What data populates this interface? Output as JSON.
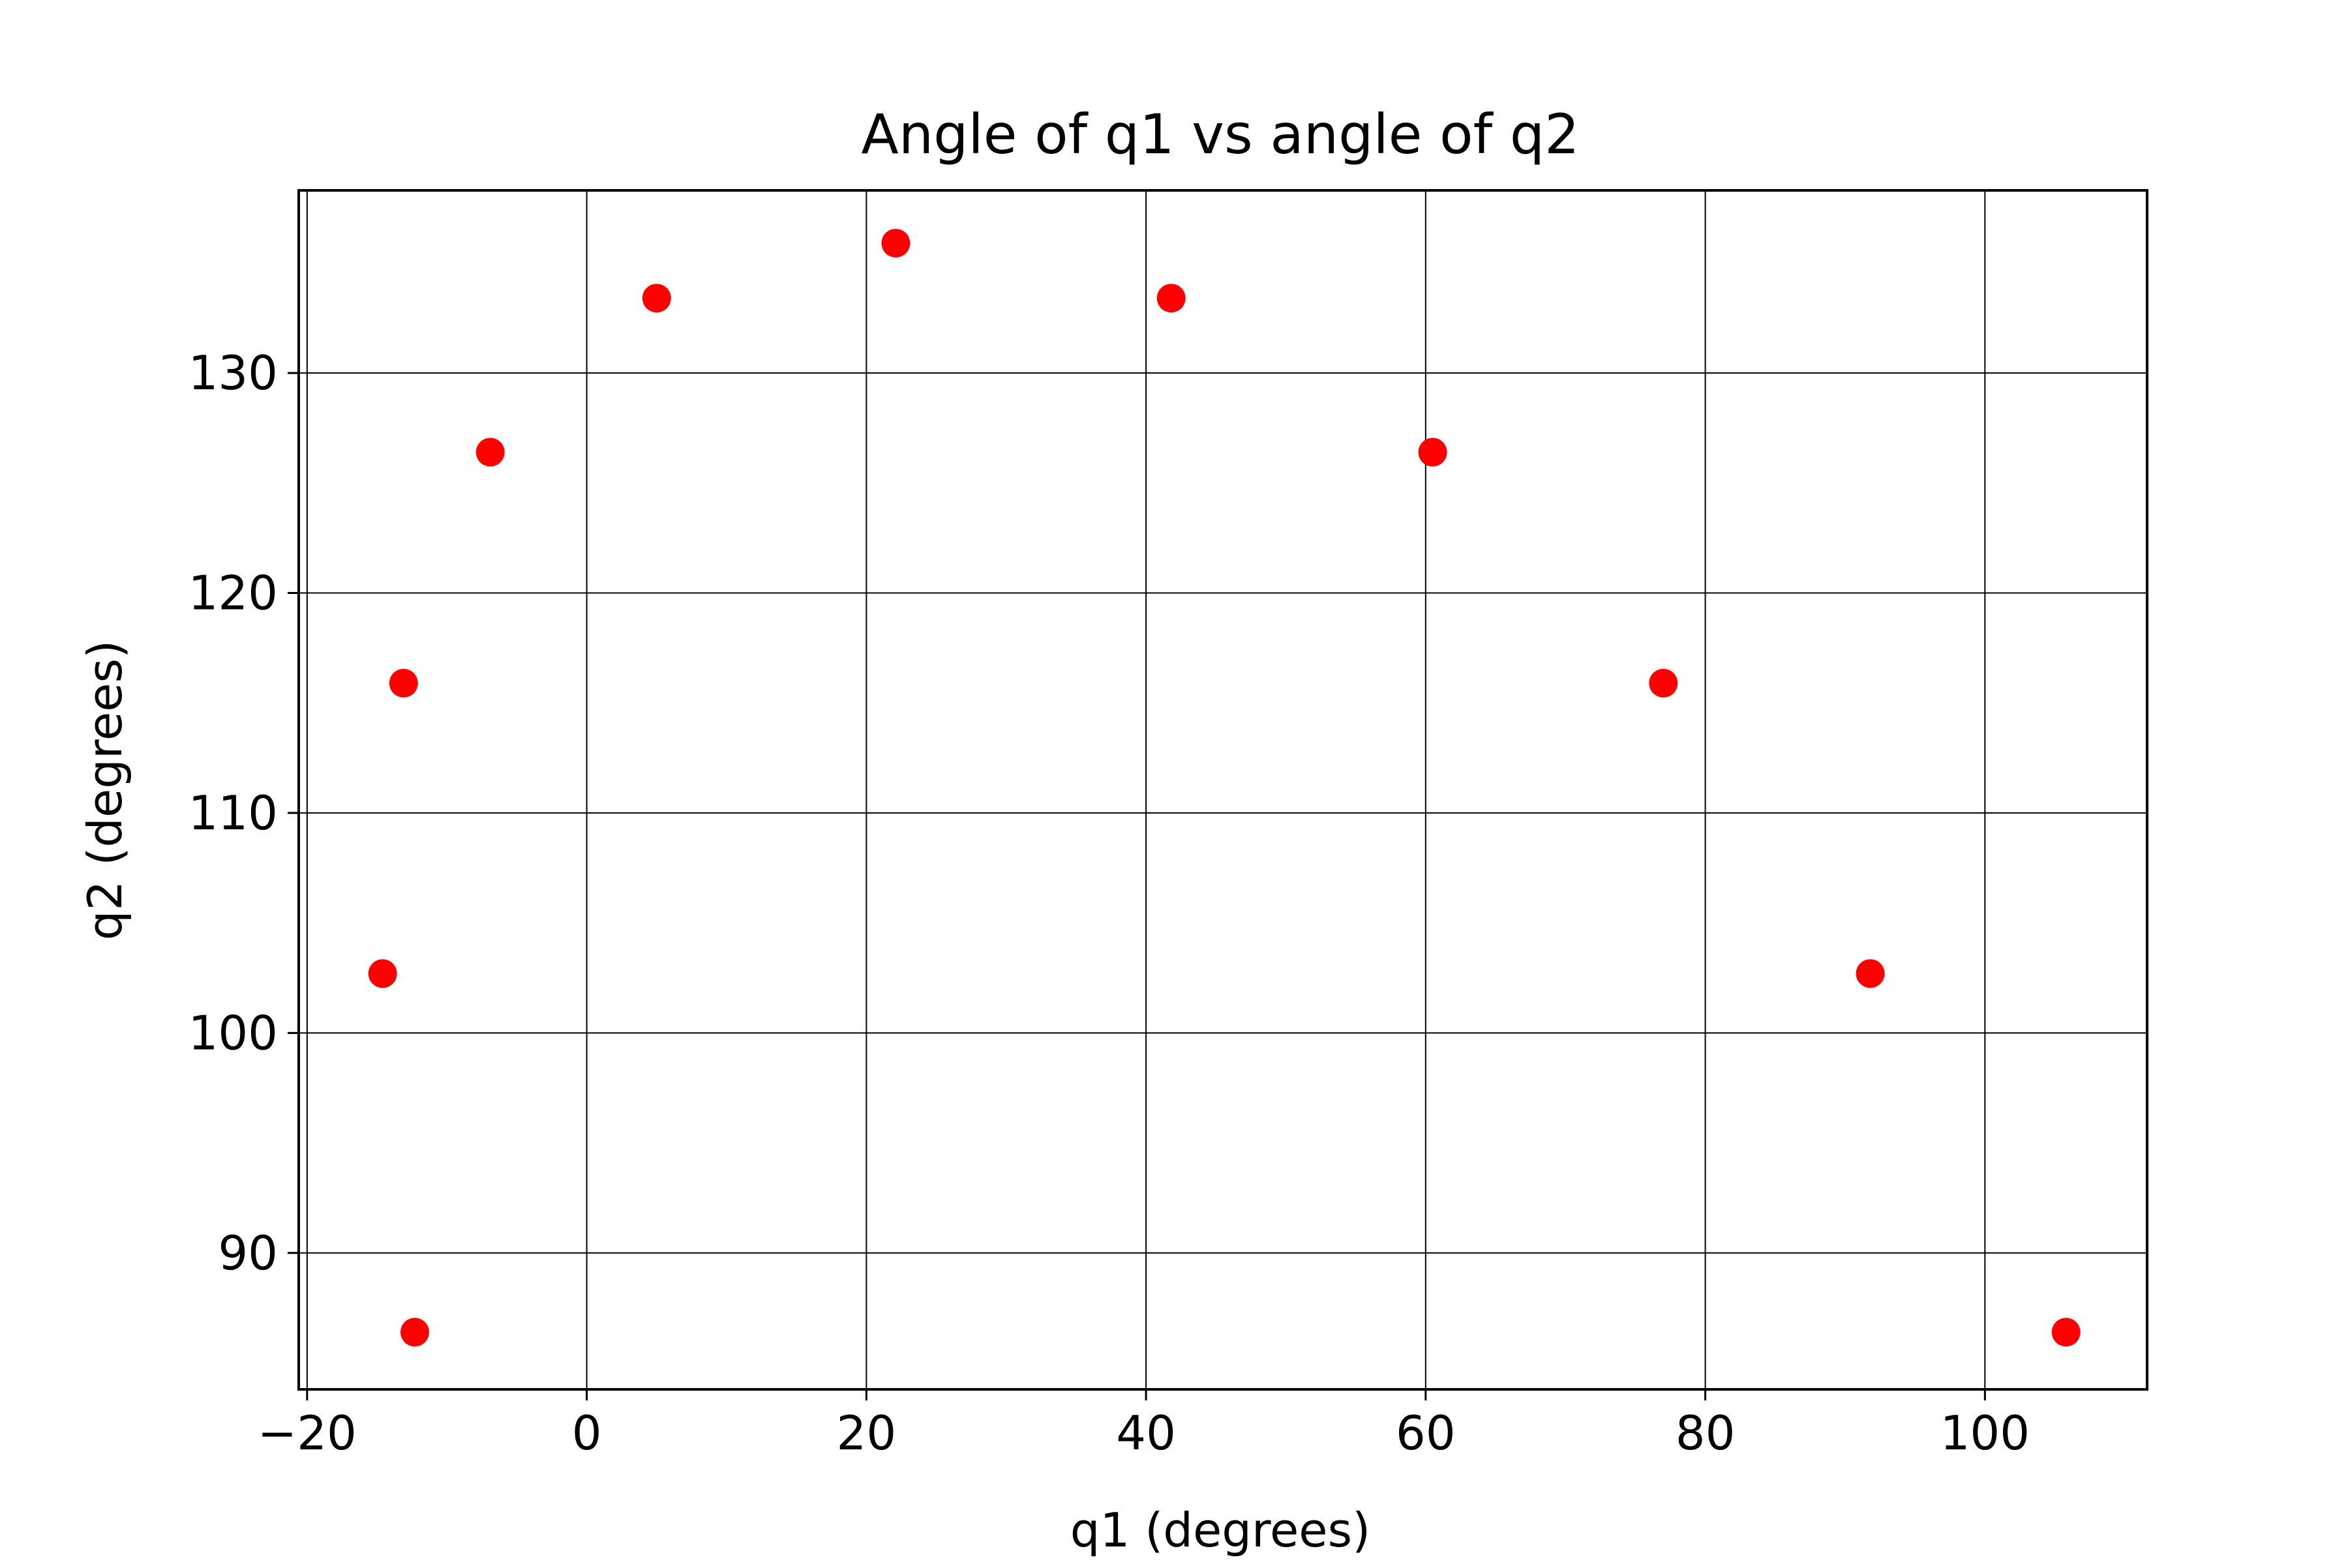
{
  "chart_data": {
    "type": "scatter",
    "title": "Angle of q1 vs angle of q2",
    "xlabel": "q1 (degrees)",
    "ylabel": "q2 (degrees)",
    "xlim": [
      -20.6,
      111.6
    ],
    "ylim": [
      83.8,
      138.3
    ],
    "xticks": [
      -20,
      0,
      20,
      40,
      60,
      80,
      100
    ],
    "xtick_labels": [
      "−20",
      "0",
      "20",
      "40",
      "60",
      "80",
      "100"
    ],
    "yticks": [
      90,
      100,
      110,
      120,
      130
    ],
    "ytick_labels": [
      "90",
      "100",
      "110",
      "120",
      "130"
    ],
    "grid": true,
    "marker_color": "#ff0000",
    "series": [
      {
        "x": [
          -12.3,
          -14.6,
          -13.1,
          -6.9,
          5.0,
          22.1,
          41.8,
          60.5,
          77.0,
          91.8,
          105.8
        ],
        "y": [
          86.4,
          102.7,
          115.9,
          126.4,
          133.4,
          135.9,
          133.4,
          126.4,
          115.9,
          102.7,
          86.4
        ]
      }
    ]
  }
}
